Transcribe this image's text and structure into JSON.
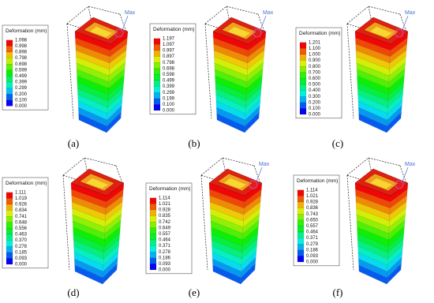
{
  "panels": [
    {
      "label": "(a)",
      "legend_title": "Deformation (mm)",
      "legend_values": [
        "1.098",
        "0.998",
        "0.898",
        "0.798",
        "0.698",
        "0.599",
        "0.499",
        "0.399",
        "0.299",
        "0.200",
        "0.100",
        "0.000"
      ],
      "max_label": "Max"
    },
    {
      "label": "(b)",
      "legend_title": "Deformation (mm)",
      "legend_values": [
        "1.197",
        "1.097",
        "0.997",
        "0.897",
        "0.798",
        "0.698",
        "0.598",
        "0.499",
        "0.399",
        "0.299",
        "0.199",
        "0.100",
        "0.000"
      ],
      "max_label": "Max"
    },
    {
      "label": "(c)",
      "legend_title": "Deformation (mm)",
      "legend_values": [
        "1.201",
        "1.100",
        "1.000",
        "0.900",
        "0.800",
        "0.700",
        "0.600",
        "0.500",
        "0.400",
        "0.300",
        "0.200",
        "0.100",
        "0.000"
      ],
      "max_label": "Max"
    },
    {
      "label": "(d)",
      "legend_title": "Deformation (mm)",
      "legend_values": [
        "1.111",
        "1.019",
        "0.926",
        "0.834",
        "0.741",
        "0.648",
        "0.556",
        "0.463",
        "0.370",
        "0.278",
        "0.185",
        "0.093",
        "0.000"
      ]
    },
    {
      "label": "(e)",
      "legend_title": "Deformation (mm)",
      "legend_values": [
        "1.114",
        "1.021",
        "0.928",
        "0.835",
        "0.742",
        "0.649",
        "0.557",
        "0.464",
        "0.371",
        "0.278",
        "0.186",
        "0.093",
        "0.000"
      ],
      "max_label": "Max"
    },
    {
      "label": "(f)",
      "legend_title": "Deformation (mm)",
      "legend_values": [
        "1.114",
        "1.021",
        "0.928",
        "0.836",
        "0.743",
        "0.650",
        "0.557",
        "0.464",
        "0.371",
        "0.279",
        "0.186",
        "0.093",
        "0.000"
      ],
      "max_label": "Max"
    }
  ]
}
